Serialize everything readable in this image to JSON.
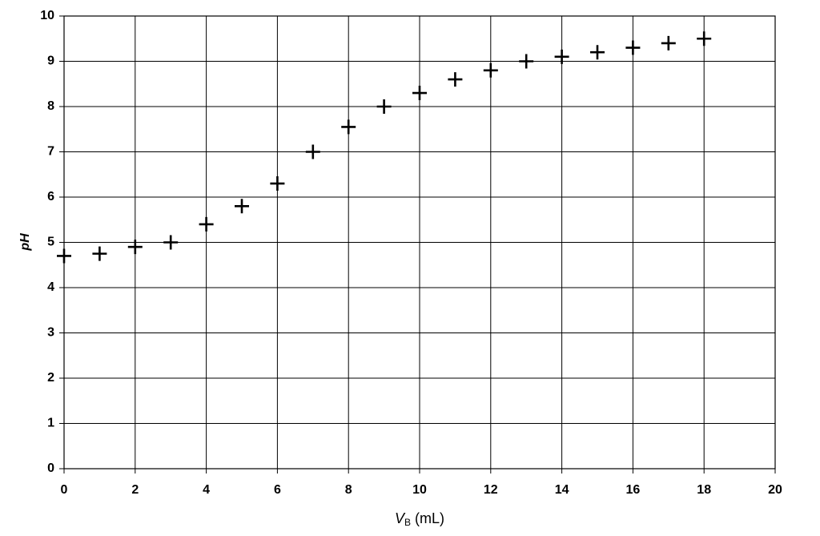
{
  "chart_data": {
    "type": "scatter",
    "xlabel": {
      "symbol": "V",
      "subscript": "B",
      "unit": "(mL)"
    },
    "ylabel": "pH",
    "x": [
      0,
      1,
      2,
      3,
      4,
      5,
      6,
      7,
      8,
      9,
      10,
      11,
      12,
      13,
      14,
      15,
      16,
      17,
      18
    ],
    "values": [
      4.7,
      4.75,
      4.9,
      5.0,
      5.4,
      5.8,
      6.3,
      7.0,
      7.55,
      8.0,
      8.3,
      8.6,
      8.8,
      9.0,
      9.1,
      9.2,
      9.3,
      9.4,
      9.5
    ],
    "color": "#000000",
    "marker": "+",
    "xlim": [
      0,
      20
    ],
    "xticks": [
      0,
      2,
      4,
      6,
      8,
      10,
      12,
      14,
      16,
      18,
      20
    ],
    "ylim": [
      0,
      10
    ],
    "yticks": [
      0,
      1,
      2,
      3,
      4,
      5,
      6,
      7,
      8,
      9,
      10
    ],
    "grid": true
  }
}
